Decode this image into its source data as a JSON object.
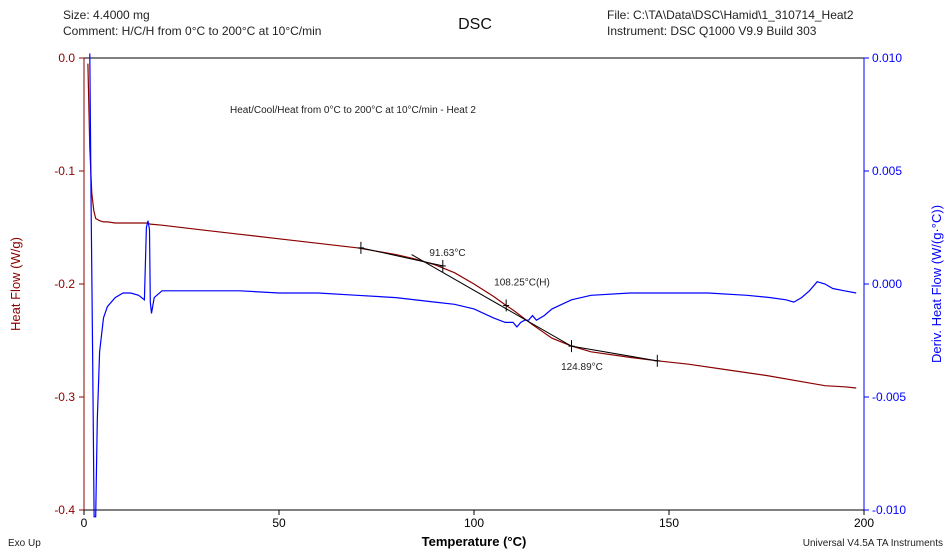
{
  "header": {
    "size_line": "Size:  4.4000 mg",
    "comment_line": "Comment: H/C/H from 0°C to 200°C at 10°C/min",
    "title": "DSC",
    "file_line": "File: C:\\TA\\Data\\DSC\\Hamid\\1_310714_Heat2",
    "instrument_line": "Instrument: DSC Q1000 V9.9 Build 303"
  },
  "footer": {
    "exo_label": "Exo Up",
    "software_label": "Universal V4.5A TA Instruments"
  },
  "colors": {
    "heat_flow": "#8b0000",
    "deriv": "#0000ff",
    "construction": "#000000"
  },
  "chart_data": {
    "type": "line",
    "subtitle": "Heat/Cool/Heat from 0°C to 200°C at 10°C/min - Heat 2",
    "xlabel": "Temperature (°C)",
    "ylabel_left": "Heat Flow (W/g)",
    "ylabel_right": "Deriv. Heat Flow (W/(g·°C))",
    "xlim": [
      0,
      200
    ],
    "ylim_left": [
      -0.4,
      0.0
    ],
    "ylim_right": [
      -0.01,
      0.01
    ],
    "x_ticks": [
      "0",
      "50",
      "100",
      "150",
      "200"
    ],
    "y_left_ticks": [
      "0.0",
      "-0.1",
      "-0.2",
      "-0.3",
      "-0.4"
    ],
    "y_right_ticks": [
      "0.010",
      "0.005",
      "0.000",
      "-0.005",
      "-0.010"
    ],
    "grid": false,
    "series": [
      {
        "axis": "left",
        "x": [
          1.0,
          1.5,
          2.0,
          2.5,
          3,
          4,
          5,
          6,
          8,
          10,
          14,
          16,
          17,
          20,
          30,
          40,
          50,
          60,
          70,
          75,
          80,
          85,
          90,
          95,
          100,
          105,
          108.25,
          110,
          115,
          120,
          125,
          130,
          140,
          147,
          155,
          165,
          175,
          185,
          190,
          195,
          198
        ],
        "y": [
          -0.005,
          -0.08,
          -0.12,
          -0.135,
          -0.142,
          -0.144,
          -0.145,
          -0.145,
          -0.146,
          -0.146,
          -0.146,
          -0.146,
          -0.147,
          -0.148,
          -0.152,
          -0.156,
          -0.16,
          -0.164,
          -0.168,
          -0.171,
          -0.174,
          -0.178,
          -0.183,
          -0.19,
          -0.2,
          -0.211,
          -0.219,
          -0.223,
          -0.236,
          -0.248,
          -0.255,
          -0.26,
          -0.265,
          -0.268,
          -0.271,
          -0.276,
          -0.281,
          -0.287,
          -0.29,
          -0.291,
          -0.292
        ]
      },
      {
        "axis": "right",
        "x": [
          1.5,
          1.8,
          2.2,
          2.6,
          3.0,
          3.4,
          4.0,
          5,
          6,
          8,
          10,
          12,
          14,
          15.5,
          16.0,
          16.4,
          16.8,
          17.0,
          17.3,
          18,
          20,
          25,
          30,
          40,
          50,
          60,
          70,
          80,
          90,
          95,
          100,
          105,
          108,
          110,
          111,
          112,
          113,
          114,
          115,
          116,
          118,
          120,
          125,
          130,
          140,
          150,
          160,
          170,
          176,
          180,
          182,
          184,
          186,
          188,
          190,
          192,
          195,
          198
        ],
        "y": [
          0.0102,
          0.004,
          -0.003,
          -0.0103,
          -0.0103,
          -0.006,
          -0.003,
          -0.0015,
          -0.001,
          -0.0006,
          -0.0004,
          -0.0004,
          -0.0005,
          -0.0007,
          0.0025,
          0.0028,
          0.0024,
          -0.0008,
          -0.0013,
          -0.0006,
          -0.0003,
          -0.0003,
          -0.0003,
          -0.0003,
          -0.0004,
          -0.0004,
          -0.0005,
          -0.0006,
          -0.0008,
          -0.0009,
          -0.0011,
          -0.0015,
          -0.0017,
          -0.0017,
          -0.0019,
          -0.0017,
          -0.0016,
          -0.0016,
          -0.0014,
          -0.0016,
          -0.0014,
          -0.0011,
          -0.0007,
          -0.0005,
          -0.0004,
          -0.0004,
          -0.0004,
          -0.0005,
          -0.0006,
          -0.0007,
          -0.0008,
          -0.0006,
          -0.0003,
          0.0001,
          0.0,
          -0.0002,
          -0.0003,
          -0.0004
        ]
      }
    ],
    "construction_lines": [
      {
        "x": [
          71.0,
          92.0
        ],
        "y": [
          -0.168,
          -0.184
        ]
      },
      {
        "x": [
          84.0,
          125.0
        ],
        "y": [
          -0.174,
          -0.255
        ]
      },
      {
        "x": [
          125.0,
          147.0
        ],
        "y": [
          -0.255,
          -0.268
        ]
      }
    ],
    "tick_marks": [
      {
        "x": 71.0,
        "y": -0.168
      },
      {
        "x": 92.0,
        "y": -0.184
      },
      {
        "x": 108.25,
        "y": -0.219
      },
      {
        "x": 125.0,
        "y": -0.255
      },
      {
        "x": 147.0,
        "y": -0.268
      }
    ],
    "annotations": [
      {
        "text": "91.63°C",
        "x": 91.63,
        "y": -0.184
      },
      {
        "text": "108.25°C(H)",
        "x": 108.25,
        "y": -0.219
      },
      {
        "text": "124.89°C",
        "x": 124.89,
        "y": -0.255
      }
    ]
  }
}
